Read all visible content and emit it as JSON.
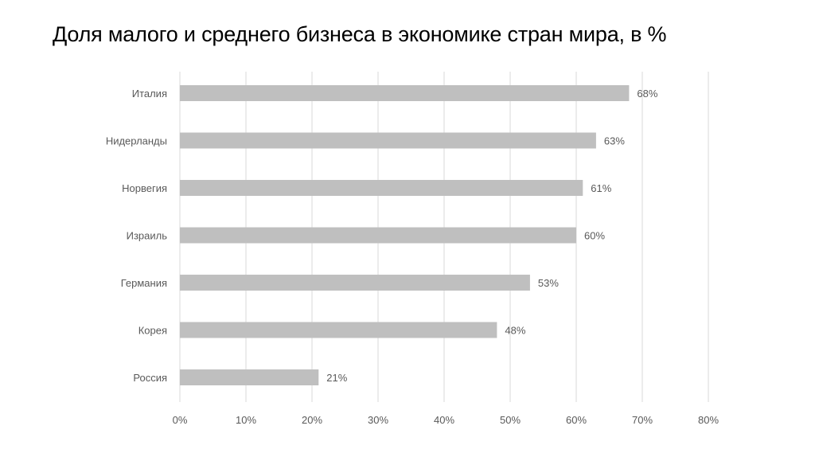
{
  "title": "Доля малого и среднего бизнеса в экономике стран мира, в %",
  "chart_data": {
    "type": "bar",
    "orientation": "horizontal",
    "categories": [
      "Италия",
      "Нидерланды",
      "Норвегия",
      "Израиль",
      "Германия",
      "Корея",
      "Россия"
    ],
    "values": [
      68,
      63,
      61,
      60,
      53,
      48,
      21
    ],
    "data_labels": [
      "68%",
      "63%",
      "61%",
      "60%",
      "53%",
      "48%",
      "21%"
    ],
    "xlim": [
      0,
      80
    ],
    "x_ticks": [
      0,
      10,
      20,
      30,
      40,
      50,
      60,
      70,
      80
    ],
    "x_tick_labels": [
      "0%",
      "10%",
      "20%",
      "30%",
      "40%",
      "50%",
      "60%",
      "70%",
      "80%"
    ],
    "grid": "vertical",
    "legend": "none",
    "bar_color": "#bfbfbf",
    "grid_color": "#d9d9d9",
    "label_color": "#595959"
  }
}
